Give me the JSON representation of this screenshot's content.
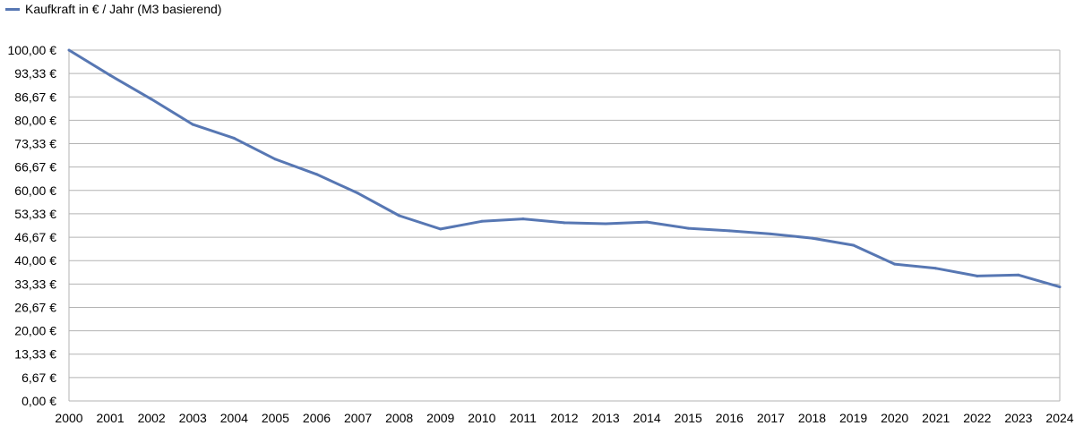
{
  "chart_data": {
    "type": "line",
    "title": "",
    "xlabel": "",
    "ylabel": "",
    "legend": "top-left",
    "grid": true,
    "x": [
      "2000",
      "2001",
      "2002",
      "2003",
      "2004",
      "2005",
      "2006",
      "2007",
      "2008",
      "2009",
      "2010",
      "2011",
      "2012",
      "2013",
      "2014",
      "2015",
      "2016",
      "2017",
      "2018",
      "2019",
      "2020",
      "2021",
      "2022",
      "2023",
      "2024"
    ],
    "series": [
      {
        "name": "Kaufkraft in € / Jahr (M3 basierend)",
        "color": "#5777b3",
        "values": [
          100.0,
          92.8,
          86.0,
          78.8,
          74.9,
          68.9,
          64.6,
          59.2,
          52.8,
          49.0,
          51.2,
          51.9,
          50.8,
          50.5,
          51.0,
          49.2,
          48.5,
          47.6,
          46.4,
          44.4,
          39.0,
          37.8,
          35.6,
          35.9,
          32.5
        ]
      }
    ],
    "ylim": [
      0,
      100
    ],
    "ytick_labels": [
      "0,00 €",
      "6,67 €",
      "13,33 €",
      "20,00 €",
      "26,67 €",
      "33,33 €",
      "40,00 €",
      "46,67 €",
      "53,33 €",
      "60,00 €",
      "66,67 €",
      "73,33 €",
      "80,00 €",
      "86,67 €",
      "93,33 €",
      "100,00 €"
    ]
  }
}
